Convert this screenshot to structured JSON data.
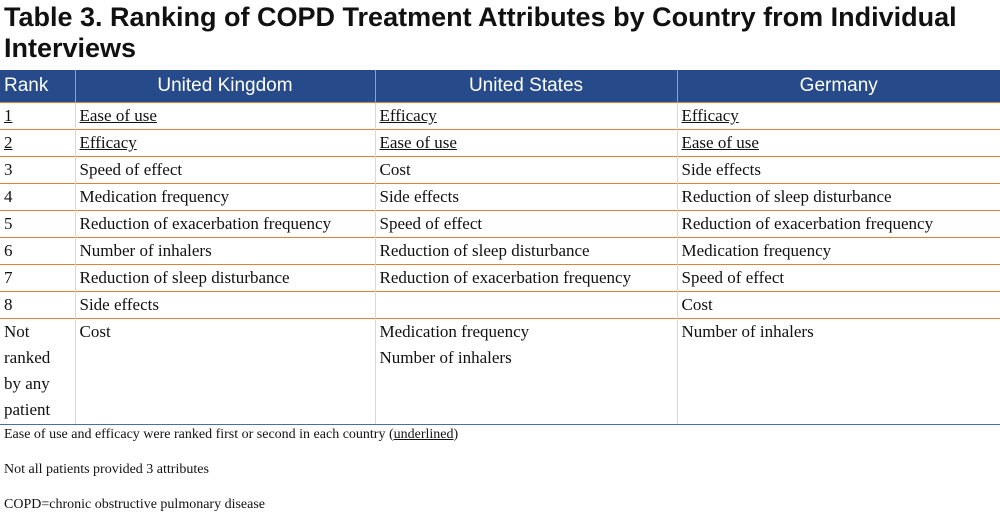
{
  "title": "Table 3. Ranking of COPD Treatment Attributes by Country from Individual Interviews",
  "table": {
    "headers": [
      "Rank",
      "United Kingdom",
      "United States",
      "Germany"
    ],
    "rows": [
      {
        "rank": "1",
        "uk": "Ease of use",
        "us": "Efficacy",
        "de": "Efficacy"
      },
      {
        "rank": "2",
        "uk": "Efficacy",
        "us": "Ease of use",
        "de": "Ease of use"
      },
      {
        "rank": "3",
        "uk": "Speed of effect",
        "us": "Cost",
        "de": "Side effects"
      },
      {
        "rank": "4",
        "uk": "Medication frequency",
        "us": "Side effects",
        "de": "Reduction of sleep disturbance"
      },
      {
        "rank": "5",
        "uk": "Reduction of exacerbation frequency",
        "us": "Speed of effect",
        "de": "Reduction of exacerbation frequency"
      },
      {
        "rank": "6",
        "uk": "Number of inhalers",
        "us": "Reduction of sleep disturbance",
        "de": "Medication frequency"
      },
      {
        "rank": "7",
        "uk": "Reduction of sleep disturbance",
        "us": "Reduction of exacerbation frequency",
        "de": "Speed of effect"
      },
      {
        "rank": "8",
        "uk": "Side effects",
        "us": "",
        "de": "Cost"
      }
    ],
    "not_ranked": {
      "label_lines": [
        "Not",
        "ranked",
        "by any",
        "patient"
      ],
      "uk": [
        "Cost"
      ],
      "us": [
        "Medication frequency",
        "Number of inhalers"
      ],
      "de": [
        "Number of inhalers"
      ]
    }
  },
  "footnotes": {
    "note1_prefix": "Ease of use and efficacy were ranked first or second in each country (",
    "note1_underlined": "underlined",
    "note1_suffix": ")",
    "note2": "Not all patients provided 3 attributes",
    "note3": "COPD=chronic obstructive pulmonary disease"
  },
  "colors": {
    "header_bg": "#264a8a",
    "row_divider": "#e67e3b"
  }
}
